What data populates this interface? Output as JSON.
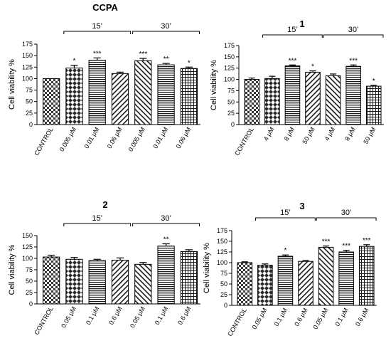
{
  "chart_data": [
    {
      "type": "bar",
      "title": "CCPA",
      "ylabel": "Cell viability %",
      "ylim": [
        0,
        175
      ],
      "yticks": [
        "0",
        "25",
        "50",
        "75",
        "100",
        "125",
        "150",
        "175"
      ],
      "categories": [
        "CONTROL",
        "0.005 μM",
        "0.01 μM",
        "0.06 μM",
        "0.005 μM",
        "0.01 μM",
        "0.06 μM"
      ],
      "values": [
        100,
        123,
        140,
        111,
        139,
        130,
        122
      ],
      "errors": [
        0,
        6,
        5,
        3,
        5,
        3,
        3
      ],
      "significance": [
        "",
        "*",
        "***",
        "",
        "***",
        "**",
        "*"
      ],
      "patterns": [
        "checker",
        "diamond",
        "hlines",
        "diag-right",
        "diag-left",
        "hlines",
        "grid"
      ],
      "groups": [
        {
          "label": "15’",
          "from": 1,
          "to": 3
        },
        {
          "label": "30’",
          "from": 4,
          "to": 6
        }
      ]
    },
    {
      "type": "bar",
      "title": "1",
      "ylabel": "Cell viability %",
      "ylim": [
        0,
        175
      ],
      "yticks": [
        "0",
        "25",
        "50",
        "75",
        "100",
        "125",
        "150",
        "175"
      ],
      "categories": [
        "CONTROL",
        "4 μM",
        "8 μM",
        "50 μM",
        "4 μM",
        "8 μM",
        "50 μM"
      ],
      "values": [
        100,
        102,
        130,
        116,
        108,
        129,
        85
      ],
      "errors": [
        3,
        5,
        2,
        3,
        4,
        3,
        2
      ],
      "significance": [
        "",
        "",
        "***",
        "*",
        "",
        "***",
        "*"
      ],
      "patterns": [
        "checker",
        "diamond",
        "hlines",
        "diag-right",
        "diag-left",
        "hlines",
        "grid"
      ],
      "groups": [
        {
          "label": "15’",
          "from": 1,
          "to": 3
        },
        {
          "label": "30’",
          "from": 4,
          "to": 6
        }
      ]
    },
    {
      "type": "bar",
      "title": "2",
      "ylabel": "Cell viability %",
      "ylim": [
        0,
        150
      ],
      "yticks": [
        "0",
        "25",
        "50",
        "75",
        "100",
        "125",
        "150"
      ],
      "categories": [
        "CONTROL",
        "0.05 μM",
        "0.1 μM",
        "0.6 μM",
        "0.05 μM",
        "0.1 μM",
        "0.6 μM"
      ],
      "values": [
        103,
        98,
        95,
        96,
        87,
        127,
        115
      ],
      "errors": [
        4,
        4,
        3,
        5,
        4,
        5,
        4
      ],
      "significance": [
        "",
        "",
        "",
        "",
        "",
        "**",
        ""
      ],
      "patterns": [
        "checker",
        "diamond",
        "hlines",
        "diag-right",
        "diag-left",
        "hlines",
        "grid"
      ],
      "groups": [
        {
          "label": "15’",
          "from": 1,
          "to": 3
        },
        {
          "label": "30’",
          "from": 4,
          "to": 6
        }
      ]
    },
    {
      "type": "bar",
      "title": "3",
      "ylabel": "Cell viability %",
      "ylim": [
        0,
        175
      ],
      "yticks": [
        "0",
        "25",
        "50",
        "75",
        "100",
        "125",
        "150",
        "175"
      ],
      "categories": [
        "CONTROL",
        "0.05 μM",
        "0.1 μM",
        "0.6 μM",
        "0.05 μM",
        "0.1 μM",
        "0.6 μM"
      ],
      "values": [
        100,
        94,
        115,
        103,
        136,
        125,
        138
      ],
      "errors": [
        2,
        3,
        3,
        2,
        3,
        4,
        4
      ],
      "significance": [
        "",
        "",
        "*",
        "",
        "***",
        "***",
        "***"
      ],
      "patterns": [
        "checker",
        "diamond",
        "hlines",
        "diag-right",
        "diag-left",
        "hlines",
        "grid"
      ],
      "groups": [
        {
          "label": "15’",
          "from": 1,
          "to": 3
        },
        {
          "label": "30’",
          "from": 4,
          "to": 6
        }
      ]
    }
  ]
}
